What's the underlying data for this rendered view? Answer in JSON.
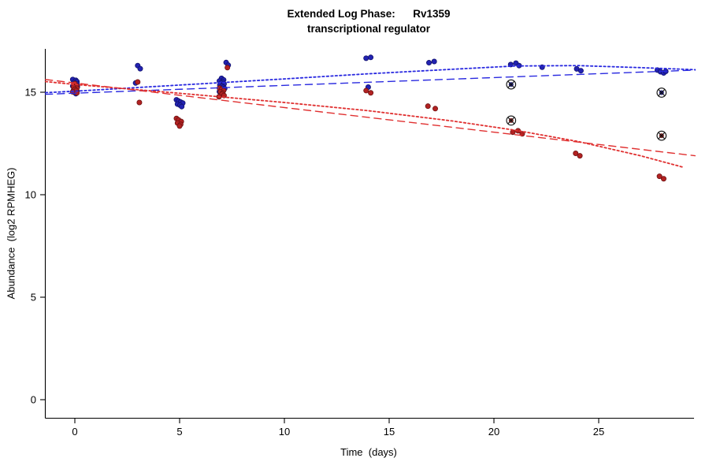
{
  "chart_data": {
    "type": "scatter",
    "title": "Extended Log Phase:      Rv1359",
    "subtitle": "transcriptional regulator",
    "xlabel": "Time  (days)",
    "ylabel": "Abundance  (log2 RPMHEG)",
    "x_ticks": [
      0,
      5,
      10,
      15,
      20,
      25
    ],
    "y_ticks": [
      0,
      5,
      10,
      15
    ],
    "xlim": [
      -1.4,
      29.6
    ],
    "ylim": [
      -0.9,
      17.1
    ],
    "grid": false,
    "legend": null,
    "background": "#ffffff",
    "series": [
      {
        "name": "series-blue",
        "color": "#2222b2",
        "edge": "#12126e",
        "points": [
          [
            -0.1,
            15.62
          ],
          [
            0.05,
            15.58
          ],
          [
            0.1,
            15.52
          ],
          [
            -0.05,
            15.47
          ],
          [
            0.1,
            15.42
          ],
          [
            0,
            15.37
          ],
          [
            -0.1,
            15.3
          ],
          [
            0.12,
            15.27
          ],
          [
            0,
            15.22
          ],
          [
            0.06,
            15.17
          ],
          [
            -0.06,
            15.1
          ],
          [
            0.1,
            15.05
          ],
          [
            0,
            15.0
          ],
          [
            0.05,
            14.93
          ],
          [
            3,
            16.3
          ],
          [
            3.12,
            16.15
          ],
          [
            2.9,
            15.45
          ],
          [
            4.85,
            14.63
          ],
          [
            4.95,
            14.57
          ],
          [
            5.05,
            14.52
          ],
          [
            5.15,
            14.47
          ],
          [
            4.9,
            14.42
          ],
          [
            5.02,
            14.37
          ],
          [
            5.1,
            14.3
          ],
          [
            7,
            15.68
          ],
          [
            7.1,
            15.6
          ],
          [
            6.9,
            15.55
          ],
          [
            7.05,
            15.5
          ],
          [
            6.98,
            15.45
          ],
          [
            7.12,
            15.4
          ],
          [
            6.92,
            15.35
          ],
          [
            7.02,
            15.3
          ],
          [
            7.08,
            15.24
          ],
          [
            7.15,
            15.18
          ],
          [
            7,
            15.1
          ],
          [
            6.9,
            15.03
          ],
          [
            7.22,
            16.45
          ],
          [
            7.32,
            16.32
          ],
          [
            13.9,
            16.66
          ],
          [
            14.12,
            16.7
          ],
          [
            14,
            15.25
          ],
          [
            16.9,
            16.44
          ],
          [
            17.15,
            16.5
          ],
          [
            20.8,
            16.35
          ],
          [
            21.05,
            16.42
          ],
          [
            21.2,
            16.3
          ],
          [
            22.3,
            16.22
          ],
          [
            23.95,
            16.14
          ],
          [
            24.15,
            16.05
          ],
          [
            27.8,
            16.08
          ],
          [
            27.95,
            16.0
          ],
          [
            28.1,
            15.94
          ],
          [
            28.2,
            16.02
          ]
        ]
      },
      {
        "name": "series-red",
        "color": "#b22222",
        "edge": "#6e1212",
        "points": [
          [
            0,
            15.42
          ],
          [
            0.08,
            15.32
          ],
          [
            -0.06,
            15.26
          ],
          [
            0.1,
            15.2
          ],
          [
            0,
            15.14
          ],
          [
            0.06,
            15.08
          ],
          [
            -0.1,
            15.02
          ],
          [
            0.1,
            14.97
          ],
          [
            3,
            15.5
          ],
          [
            3.08,
            14.5
          ],
          [
            4.85,
            13.72
          ],
          [
            4.95,
            13.65
          ],
          [
            5.08,
            13.57
          ],
          [
            4.9,
            13.5
          ],
          [
            5.05,
            13.43
          ],
          [
            5,
            13.35
          ],
          [
            6.9,
            15.2
          ],
          [
            7,
            15.14
          ],
          [
            7.1,
            15.08
          ],
          [
            6.95,
            15.02
          ],
          [
            7.05,
            14.96
          ],
          [
            7.02,
            14.9
          ],
          [
            7.12,
            14.84
          ],
          [
            6.88,
            14.78
          ],
          [
            7.28,
            16.2
          ],
          [
            13.9,
            15.08
          ],
          [
            14.12,
            14.97
          ],
          [
            16.85,
            14.32
          ],
          [
            17.2,
            14.2
          ],
          [
            20.9,
            13.05
          ],
          [
            21.15,
            13.12
          ],
          [
            21.35,
            12.97
          ],
          [
            23.9,
            12.02
          ],
          [
            24.1,
            11.9
          ],
          [
            27.9,
            10.9
          ],
          [
            28.1,
            10.78
          ]
        ]
      }
    ],
    "outliers": [
      {
        "name": "circled-blue",
        "color": "#22227a",
        "points": [
          [
            20.82,
            15.38
          ],
          [
            28.0,
            14.98
          ]
        ]
      },
      {
        "name": "circled-red",
        "color": "#7a2222",
        "points": [
          [
            20.82,
            13.62
          ],
          [
            28.0,
            12.88
          ]
        ]
      }
    ],
    "trend_lines": [
      {
        "name": "blue-dotted-fit",
        "color": "#2a2ae0",
        "dash": "2.5,3",
        "width": 1.8,
        "points": [
          [
            -1.4,
            14.98
          ],
          [
            0,
            15.05
          ],
          [
            5,
            15.35
          ],
          [
            10,
            15.65
          ],
          [
            14,
            15.9
          ],
          [
            18,
            16.12
          ],
          [
            21,
            16.28
          ],
          [
            24,
            16.3
          ],
          [
            27,
            16.2
          ],
          [
            29.6,
            16.1
          ]
        ]
      },
      {
        "name": "blue-dashed-fit",
        "color": "#2a2ae0",
        "dash": "9,6",
        "width": 1.4,
        "points": [
          [
            -1.4,
            14.9
          ],
          [
            29.6,
            16.08
          ]
        ]
      },
      {
        "name": "red-dotted-fit",
        "color": "#e03030",
        "dash": "2.5,3",
        "width": 1.8,
        "points": [
          [
            -1.4,
            15.52
          ],
          [
            0,
            15.38
          ],
          [
            5,
            14.95
          ],
          [
            10,
            14.5
          ],
          [
            14,
            14.1
          ],
          [
            18,
            13.6
          ],
          [
            21,
            13.15
          ],
          [
            24,
            12.6
          ],
          [
            27,
            11.9
          ],
          [
            29,
            11.35
          ]
        ]
      },
      {
        "name": "red-dashed-fit",
        "color": "#e03030",
        "dash": "9,6",
        "width": 1.4,
        "points": [
          [
            -1.4,
            15.62
          ],
          [
            29.6,
            11.9
          ]
        ]
      }
    ]
  }
}
